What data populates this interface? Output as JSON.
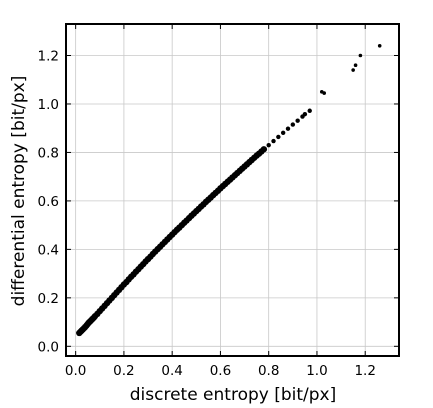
{
  "chart_data": {
    "type": "scatter",
    "title": "",
    "xlabel": "discrete entropy [bit/px]",
    "ylabel": "differential entropy [bit/px]",
    "xlim": [
      -0.04,
      1.34
    ],
    "ylim": [
      -0.04,
      1.33
    ],
    "x_ticks": [
      0.0,
      0.2,
      0.4,
      0.6,
      0.8,
      1.0,
      1.2
    ],
    "y_ticks": [
      0.0,
      0.2,
      0.4,
      0.6,
      0.8,
      1.0,
      1.2
    ],
    "x_tick_labels": [
      "0.0",
      "0.2",
      "0.4",
      "0.6",
      "0.8",
      "1.0",
      "1.2"
    ],
    "y_tick_labels": [
      "0.0",
      "0.2",
      "0.4",
      "0.6",
      "0.8",
      "1.0",
      "1.2"
    ],
    "grid": true,
    "marker_color": "#000000",
    "x": [
      0.015,
      0.02,
      0.025,
      0.03,
      0.035,
      0.04,
      0.045,
      0.05,
      0.055,
      0.06,
      0.065,
      0.07,
      0.075,
      0.08,
      0.09,
      0.1,
      0.11,
      0.12,
      0.13,
      0.14,
      0.15,
      0.16,
      0.17,
      0.18,
      0.19,
      0.2,
      0.21,
      0.22,
      0.23,
      0.24,
      0.25,
      0.26,
      0.27,
      0.28,
      0.29,
      0.3,
      0.31,
      0.32,
      0.33,
      0.34,
      0.35,
      0.36,
      0.37,
      0.38,
      0.39,
      0.4,
      0.41,
      0.42,
      0.43,
      0.44,
      0.45,
      0.46,
      0.47,
      0.48,
      0.49,
      0.5,
      0.51,
      0.52,
      0.53,
      0.54,
      0.55,
      0.56,
      0.57,
      0.58,
      0.59,
      0.6,
      0.61,
      0.62,
      0.63,
      0.64,
      0.65,
      0.66,
      0.67,
      0.68,
      0.69,
      0.7,
      0.71,
      0.72,
      0.73,
      0.74,
      0.75,
      0.76,
      0.77,
      0.78,
      0.8,
      0.82,
      0.84,
      0.86,
      0.88,
      0.9,
      0.92,
      0.94,
      0.95,
      0.97,
      1.02,
      1.03,
      1.15,
      1.16,
      1.18,
      1.26
    ],
    "y": [
      0.055,
      0.06,
      0.065,
      0.07,
      0.075,
      0.08,
      0.086,
      0.092,
      0.098,
      0.103,
      0.108,
      0.113,
      0.118,
      0.124,
      0.134,
      0.145,
      0.156,
      0.167,
      0.178,
      0.189,
      0.2,
      0.211,
      0.222,
      0.233,
      0.244,
      0.255,
      0.265,
      0.276,
      0.287,
      0.297,
      0.308,
      0.318,
      0.329,
      0.339,
      0.35,
      0.36,
      0.37,
      0.381,
      0.391,
      0.401,
      0.411,
      0.421,
      0.431,
      0.441,
      0.451,
      0.461,
      0.471,
      0.481,
      0.49,
      0.5,
      0.51,
      0.519,
      0.529,
      0.539,
      0.548,
      0.558,
      0.567,
      0.577,
      0.586,
      0.596,
      0.605,
      0.614,
      0.624,
      0.633,
      0.642,
      0.652,
      0.661,
      0.67,
      0.679,
      0.688,
      0.697,
      0.706,
      0.715,
      0.724,
      0.733,
      0.742,
      0.751,
      0.76,
      0.769,
      0.778,
      0.787,
      0.795,
      0.804,
      0.813,
      0.83,
      0.847,
      0.864,
      0.881,
      0.898,
      0.915,
      0.931,
      0.948,
      0.958,
      0.972,
      1.05,
      1.045,
      1.14,
      1.16,
      1.2,
      1.24
    ]
  }
}
